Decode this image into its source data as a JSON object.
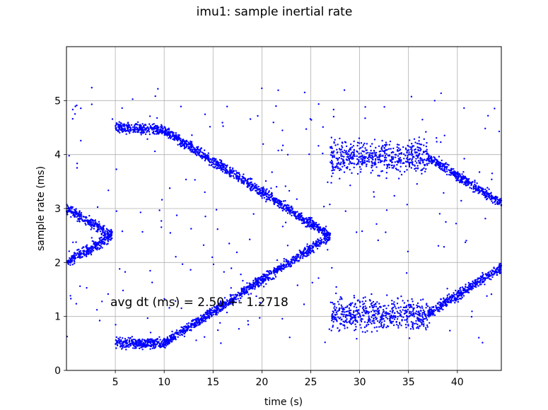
{
  "chart_data": {
    "type": "scatter",
    "title": "imu1: sample inertial rate",
    "xlabel": "time (s)",
    "ylabel": "sample rate (ms)",
    "xlim": [
      0,
      44.5
    ],
    "ylim": [
      0,
      6
    ],
    "xticks": [
      5,
      10,
      15,
      20,
      25,
      30,
      35,
      40
    ],
    "yticks": [
      0,
      1,
      2,
      3,
      4,
      5
    ],
    "grid": true,
    "marker_color": "#0000ff",
    "annotation": "avg dt (ms) = 2.50 +- 1.2718",
    "bands": [
      {
        "x": [
          0,
          4.7
        ],
        "y": [
          3.0,
          2.5
        ]
      },
      {
        "x": [
          0,
          4.7
        ],
        "y": [
          2.0,
          2.5
        ]
      },
      {
        "x": [
          5,
          10
        ],
        "y": [
          4.5,
          4.45
        ]
      },
      {
        "x": [
          10,
          27
        ],
        "y": [
          4.45,
          2.5
        ]
      },
      {
        "x": [
          5,
          10
        ],
        "y": [
          0.5,
          0.5
        ]
      },
      {
        "x": [
          10,
          27
        ],
        "y": [
          0.5,
          2.5
        ]
      },
      {
        "x": [
          27,
          37
        ],
        "y": [
          3.95,
          3.95
        ]
      },
      {
        "x": [
          37,
          44.5
        ],
        "y": [
          3.95,
          3.1
        ]
      },
      {
        "x": [
          27,
          37
        ],
        "y": [
          1.05,
          1.05
        ]
      },
      {
        "x": [
          37,
          44.5
        ],
        "y": [
          1.05,
          1.9
        ]
      }
    ]
  }
}
